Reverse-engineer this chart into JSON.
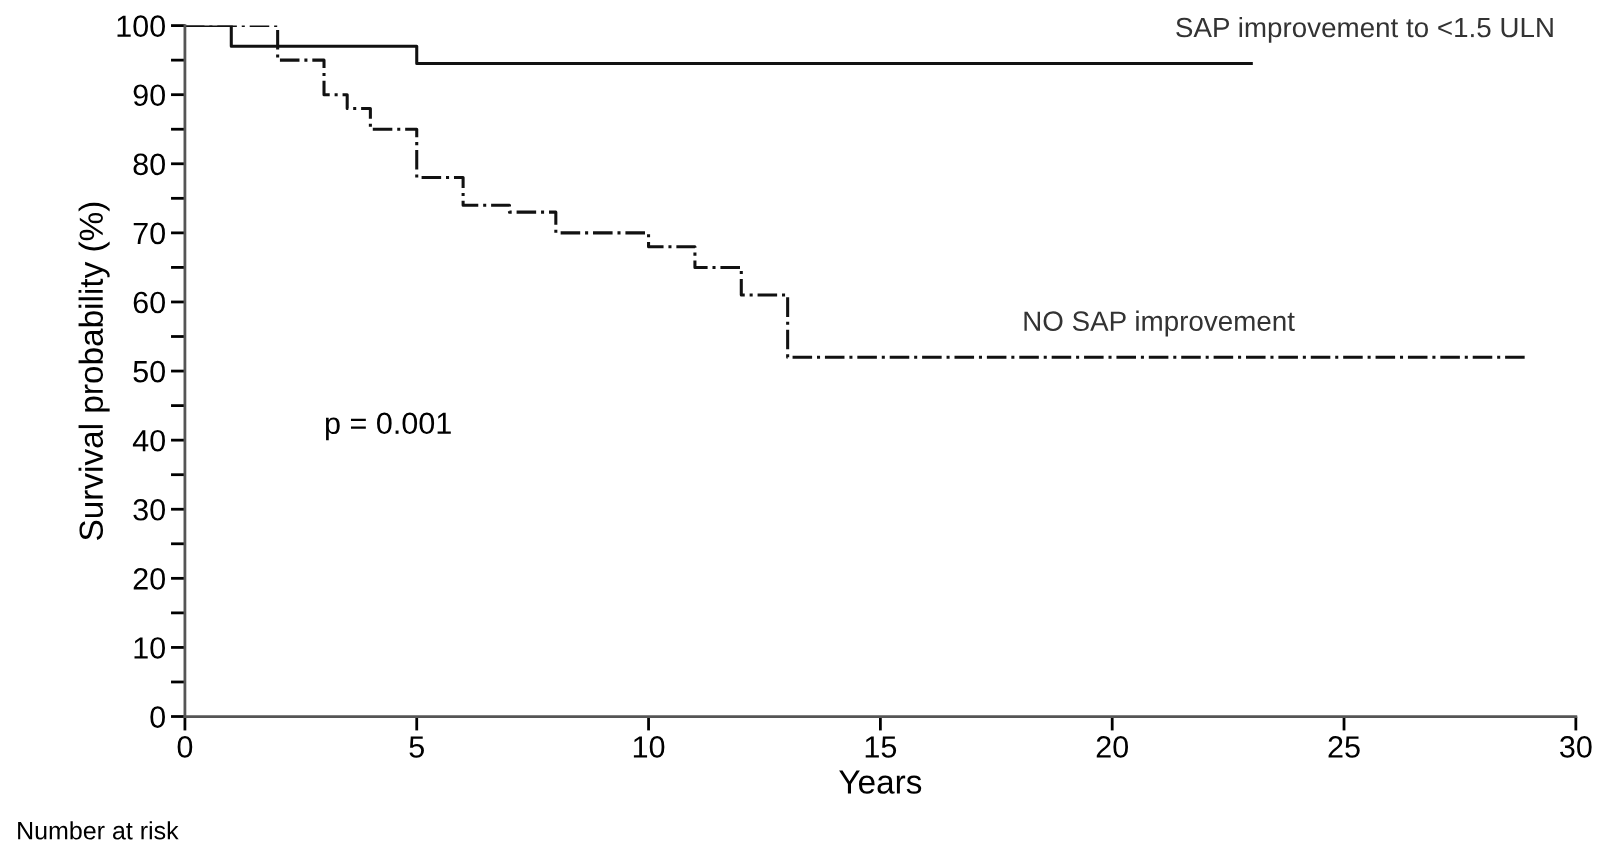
{
  "chart_data": {
    "type": "step",
    "xlabel": "Years",
    "ylabel": "Survival probability (%)",
    "series": [
      {
        "name": "SAP improvement to <1.5 ULN",
        "color": "#111111",
        "line_style": "solid",
        "x": [
          0,
          1,
          5,
          23
        ],
        "values": [
          100,
          97,
          94.5,
          94.5
        ]
      },
      {
        "name": "NO SAP improvement",
        "color": "#111111",
        "line_style": "dashed",
        "x": [
          0,
          2,
          3,
          3.5,
          4,
          5,
          6,
          7,
          8,
          10,
          11,
          12,
          13,
          29
        ],
        "values": [
          100,
          95,
          90,
          88,
          85,
          78,
          74,
          73,
          70,
          68,
          65,
          61,
          52,
          52
        ]
      }
    ],
    "xlim": [
      0,
      30
    ],
    "xticks": [
      0,
      5,
      10,
      15,
      20,
      25,
      30
    ],
    "ylim": [
      0,
      100
    ],
    "yticks": [
      0,
      {
        "value": 5,
        "label": null
      },
      10,
      {
        "value": 15,
        "label": null
      },
      20,
      {
        "value": 25,
        "label": null
      },
      30,
      {
        "value": 35,
        "label": null
      },
      40,
      {
        "value": 45,
        "label": null
      },
      50,
      {
        "value": 55,
        "label": null
      },
      60,
      {
        "value": 65,
        "label": null
      },
      70,
      {
        "value": 75,
        "label": null
      },
      80,
      {
        "value": 85,
        "label": null
      },
      90,
      {
        "value": 95,
        "label": null
      },
      100
    ],
    "grid": false,
    "marker": "none",
    "annotations": [
      "p = 0.001",
      "Number at risk"
    ]
  }
}
